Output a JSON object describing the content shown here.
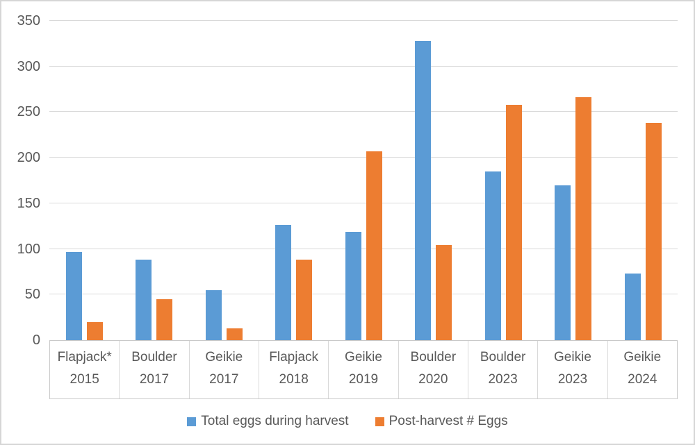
{
  "chart_data": {
    "type": "bar",
    "title": "",
    "xlabel": "",
    "ylabel": "",
    "categories": [
      "Flapjack*",
      "Boulder",
      "Geikie",
      "Flapjack",
      "Geikie",
      "Boulder",
      "Boulder",
      "Geikie",
      "Geikie"
    ],
    "category_years": [
      "2015",
      "2017",
      "2017",
      "2018",
      "2019",
      "2020",
      "2023",
      "2023",
      "2024"
    ],
    "series": [
      {
        "name": "Total eggs during harvest",
        "color": "#5B9BD5",
        "values": [
          97,
          88,
          55,
          126,
          119,
          328,
          185,
          170,
          73
        ]
      },
      {
        "name": "Post-harvest # Eggs",
        "color": "#ED7D31",
        "values": [
          20,
          45,
          13,
          88,
          207,
          104,
          258,
          266,
          238
        ]
      }
    ],
    "ylim": [
      0,
      350
    ],
    "ytick_step": 50,
    "yticks": [
      0,
      50,
      100,
      150,
      200,
      250,
      300,
      350
    ],
    "grid": true,
    "legend_position": "bottom"
  },
  "colors": {
    "series_blue": "#5B9BD5",
    "series_orange": "#ED7D31",
    "gridline": "#D9D9D9",
    "axis_line": "#C9C9C9",
    "axis_text": "#595959",
    "cell_border": "#D9D9D9",
    "chart_border": "#D6D6D6",
    "background": "#FFFFFF"
  },
  "legend": {
    "items": [
      {
        "label": "Total eggs during harvest",
        "color": "#5B9BD5"
      },
      {
        "label": "Post-harvest # Eggs",
        "color": "#ED7D31"
      }
    ]
  }
}
